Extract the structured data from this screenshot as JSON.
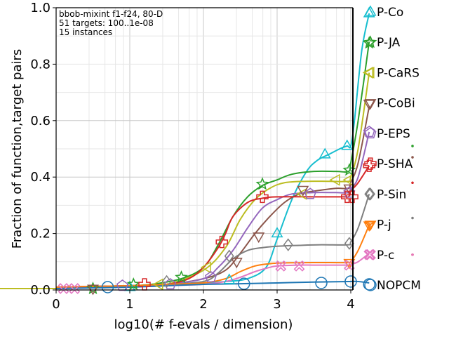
{
  "chart_data": {
    "type": "line",
    "info_lines": [
      "bbob-mixint f1-f24, 80-D",
      "51 targets: 100..1e-08",
      "15 instances"
    ],
    "xlabel": "log10(# f-evals / dimension)",
    "ylabel": "Fraction of function,target pairs",
    "xlim": [
      0,
      4.2
    ],
    "ylim": [
      0,
      1.0
    ],
    "xticks": [
      "0",
      "1",
      "2",
      "3",
      "4"
    ],
    "yticks": [
      "0.0",
      "0.2",
      "0.4",
      "0.6",
      "0.8",
      "1.0"
    ],
    "grid": true,
    "legend_position": "right",
    "series": [
      {
        "name": "P-Co",
        "color": "#17becf",
        "marker": "triangle-up",
        "x": [
          0,
          1,
          1.5,
          2,
          2.3,
          2.6,
          2.85,
          3.0,
          3.2,
          3.4,
          3.55,
          3.7,
          3.85,
          3.95,
          4.0,
          4.05,
          4.15,
          4.25
        ],
        "y": [
          0.01,
          0.015,
          0.02,
          0.025,
          0.03,
          0.04,
          0.08,
          0.18,
          0.32,
          0.42,
          0.46,
          0.48,
          0.5,
          0.51,
          0.51,
          0.6,
          0.85,
          0.98
        ],
        "mx": [
          1.0,
          2.35,
          3.0,
          3.65,
          3.95,
          4.25
        ],
        "my": [
          0.01,
          0.035,
          0.2,
          0.48,
          0.51,
          0.98
        ]
      },
      {
        "name": "P-JA",
        "color": "#2ca02c",
        "marker": "star",
        "x": [
          0,
          0.5,
          1,
          1.3,
          1.7,
          2,
          2.2,
          2.4,
          2.6,
          2.8,
          3.0,
          3.2,
          3.5,
          3.8,
          3.97,
          4.0,
          4.1,
          4.25
        ],
        "y": [
          0.01,
          0.01,
          0.015,
          0.02,
          0.04,
          0.08,
          0.16,
          0.26,
          0.33,
          0.37,
          0.39,
          0.41,
          0.42,
          0.42,
          0.42,
          0.45,
          0.6,
          0.88
        ],
        "mx": [
          0.5,
          1.05,
          1.7,
          2.8,
          3.98,
          4.25
        ],
        "my": [
          0.005,
          0.02,
          0.045,
          0.375,
          0.425,
          0.875
        ]
      },
      {
        "name": "P-CaRS",
        "color": "#bcbd22",
        "marker": "triangle-left",
        "x": [
          0,
          1,
          1.5,
          2,
          2.3,
          2.5,
          2.7,
          2.9,
          3.1,
          3.4,
          3.7,
          3.97,
          4.0,
          4.1,
          4.25
        ],
        "y": [
          0.01,
          0.015,
          0.02,
          0.07,
          0.15,
          0.25,
          0.32,
          0.36,
          0.38,
          0.385,
          0.385,
          0.385,
          0.4,
          0.5,
          0.77
        ],
        "mx": [
          1.4,
          2.05,
          3.35,
          3.8,
          3.98,
          4.25
        ],
        "my": [
          0.02,
          0.08,
          0.34,
          0.39,
          0.39,
          0.77
        ]
      },
      {
        "name": "P-CoBi",
        "color": "#8c564b",
        "marker": "triangle-down",
        "x": [
          0,
          1,
          1.5,
          2,
          2.3,
          2.5,
          2.7,
          2.9,
          3.1,
          3.3,
          3.5,
          3.8,
          3.97,
          4.0,
          4.1,
          4.25
        ],
        "y": [
          0.01,
          0.015,
          0.02,
          0.04,
          0.07,
          0.13,
          0.2,
          0.26,
          0.31,
          0.34,
          0.35,
          0.36,
          0.36,
          0.38,
          0.45,
          0.65
        ],
        "mx": [
          0.5,
          2.45,
          2.75,
          3.35,
          3.98,
          4.25
        ],
        "my": [
          0.005,
          0.1,
          0.19,
          0.355,
          0.36,
          0.66
        ]
      },
      {
        "name": "P-EPS",
        "color": "#9467bd",
        "marker": "pentagon",
        "x": [
          0,
          1,
          1.5,
          2,
          2.2,
          2.4,
          2.6,
          2.8,
          3.0,
          3.2,
          3.5,
          3.8,
          3.97,
          4.0,
          4.1,
          4.25
        ],
        "y": [
          0.01,
          0.015,
          0.02,
          0.04,
          0.08,
          0.14,
          0.22,
          0.29,
          0.32,
          0.34,
          0.345,
          0.345,
          0.345,
          0.36,
          0.4,
          0.56
        ],
        "mx": [
          0.9,
          1.55,
          2.1,
          3.45,
          3.98,
          4.25
        ],
        "my": [
          0.015,
          0.02,
          0.045,
          0.34,
          0.345,
          0.56
        ]
      },
      {
        "name": "P-SHA",
        "color": "#d62728",
        "marker": "cross",
        "x": [
          0,
          1,
          1.5,
          1.8,
          2.0,
          2.2,
          2.3,
          2.4,
          2.6,
          2.8,
          3.0,
          3.5,
          3.9,
          3.97,
          4.0,
          4.1,
          4.25
        ],
        "y": [
          0.01,
          0.015,
          0.02,
          0.04,
          0.08,
          0.15,
          0.2,
          0.26,
          0.31,
          0.325,
          0.33,
          0.33,
          0.33,
          0.33,
          0.35,
          0.38,
          0.44
        ],
        "mx": [
          1.2,
          2.25,
          2.8,
          3.95,
          4.02,
          4.25
        ],
        "my": [
          0.02,
          0.17,
          0.33,
          0.33,
          0.33,
          0.44
        ]
      },
      {
        "name": "P-Sin",
        "color": "#7f7f7f",
        "marker": "diamond",
        "x": [
          0,
          1,
          1.5,
          2.0,
          2.2,
          2.4,
          2.6,
          2.8,
          3.0,
          3.3,
          3.6,
          3.97,
          4.0,
          4.1,
          4.25
        ],
        "y": [
          0.01,
          0.015,
          0.02,
          0.03,
          0.06,
          0.11,
          0.14,
          0.15,
          0.155,
          0.158,
          0.16,
          0.16,
          0.17,
          0.22,
          0.34
        ],
        "mx": [
          1.5,
          2.35,
          3.15,
          3.98,
          4.25
        ],
        "my": [
          0.03,
          0.12,
          0.16,
          0.165,
          0.34
        ]
      },
      {
        "name": "P-j",
        "color": "#ff7f0e",
        "marker": "tri-down",
        "x": [
          0,
          1,
          1.5,
          2,
          2.3,
          2.5,
          2.7,
          2.9,
          3.1,
          3.5,
          3.97,
          4.0,
          4.1,
          4.25
        ],
        "y": [
          0.01,
          0.015,
          0.02,
          0.025,
          0.04,
          0.065,
          0.085,
          0.093,
          0.096,
          0.097,
          0.097,
          0.1,
          0.14,
          0.23
        ],
        "mx": [
          3.98,
          4.25
        ],
        "my": [
          0.097,
          0.23
        ]
      },
      {
        "name": "P-c",
        "color": "#e377c2",
        "marker": "x",
        "x": [
          0,
          1,
          1.5,
          2,
          2.3,
          2.5,
          2.7,
          2.9,
          3.0,
          3.3,
          3.6,
          3.97,
          4.0,
          4.1,
          4.25
        ],
        "y": [
          0.005,
          0.01,
          0.015,
          0.02,
          0.03,
          0.045,
          0.065,
          0.08,
          0.085,
          0.088,
          0.088,
          0.088,
          0.09,
          0.1,
          0.13
        ],
        "mx": [
          0.1,
          0.25,
          3.05,
          3.3,
          3.98,
          4.25
        ],
        "my": [
          0.005,
          0.005,
          0.085,
          0.085,
          0.088,
          0.125
        ]
      },
      {
        "name": "NOPCM",
        "color": "#1f77b4",
        "marker": "circle",
        "x": [
          0,
          1,
          1.5,
          2,
          2.5,
          3.0,
          3.5,
          3.97,
          4.0,
          4.1,
          4.25
        ],
        "y": [
          0.005,
          0.01,
          0.015,
          0.02,
          0.022,
          0.025,
          0.028,
          0.03,
          0.03,
          0.03,
          0.025
        ],
        "mx": [
          0.7,
          2.55,
          3.6,
          4.0,
          4.25
        ],
        "my": [
          0.01,
          0.022,
          0.025,
          0.03,
          0.02
        ]
      }
    ],
    "legend_tiny_dots": [
      {
        "color": "#2ca02c",
        "y": 0.51
      },
      {
        "color": "#8c564b",
        "y": 0.47
      },
      {
        "color": "#d62728",
        "y": 0.38
      },
      {
        "color": "#7f7f7f",
        "y": 0.255
      },
      {
        "color": "#ff7f0e",
        "y": 0.125
      },
      {
        "color": "#e377c2",
        "y": 0.125
      }
    ]
  }
}
